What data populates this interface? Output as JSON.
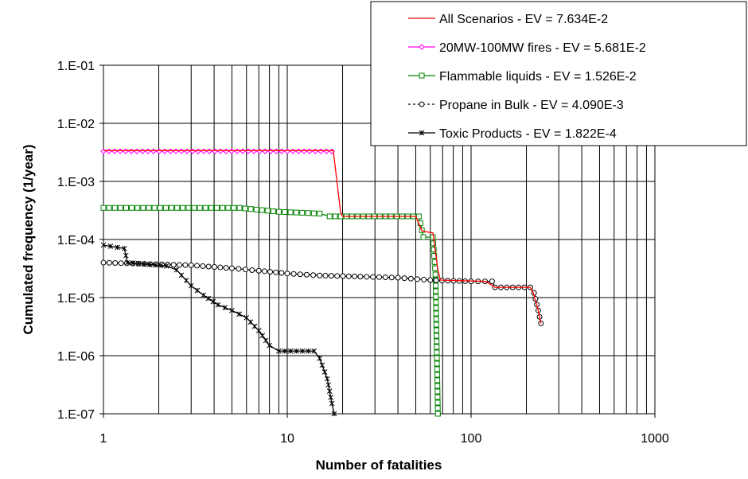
{
  "chart_data": {
    "type": "line",
    "title": "",
    "xlabel": "Number of fatalities",
    "ylabel": "Cumulated frequency (1/year)",
    "x_scale": "log",
    "y_scale": "log",
    "xlim": [
      1,
      1000
    ],
    "ylim": [
      1e-07,
      0.1
    ],
    "grid": true,
    "legend_position": "top-right",
    "x_ticks": [
      {
        "value": 1,
        "label": "1"
      },
      {
        "value": 10,
        "label": "10"
      },
      {
        "value": 100,
        "label": "100"
      },
      {
        "value": 1000,
        "label": "1000"
      }
    ],
    "y_ticks": [
      {
        "value": 0.1,
        "label": "1.E-01"
      },
      {
        "value": 0.01,
        "label": "1.E-02"
      },
      {
        "value": 0.001,
        "label": "1.E-03"
      },
      {
        "value": 0.0001,
        "label": "1.E-04"
      },
      {
        "value": 1e-05,
        "label": "1.E-05"
      },
      {
        "value": 1e-06,
        "label": "1.E-06"
      },
      {
        "value": 1e-07,
        "label": "1.E-07"
      }
    ],
    "series": [
      {
        "name": "All Scenarios - EV = 7.634E-2",
        "color": "#ff0000",
        "marker": "none",
        "points": [
          [
            1,
            0.0034
          ],
          [
            17.8,
            0.0034
          ],
          [
            19.5,
            0.0003
          ],
          [
            20,
            0.00025
          ],
          [
            50,
            0.00025
          ],
          [
            54,
            0.00014
          ],
          [
            62,
            0.00013
          ],
          [
            66,
            3e-05
          ],
          [
            68,
            2e-05
          ],
          [
            120,
            1.9e-05
          ],
          [
            135,
            1.5e-05
          ],
          [
            210,
            1.5e-05
          ],
          [
            218,
            1.2e-05
          ],
          [
            232,
            6e-06
          ],
          [
            240,
            3.6e-06
          ]
        ]
      },
      {
        "name": "20MW-100MW fires - EV = 5.681E-2",
        "color": "#ff00ff",
        "marker": "diamond",
        "points": [
          [
            1,
            0.0033
          ],
          [
            17.5,
            0.0033
          ]
        ]
      },
      {
        "name": "Flammable liquids - EV = 1.526E-2",
        "color": "#008000",
        "marker": "square",
        "points": [
          [
            1,
            0.00035
          ],
          [
            5.5,
            0.00035
          ],
          [
            9,
            0.0003
          ],
          [
            15,
            0.00028
          ],
          [
            17,
            0.00025
          ],
          [
            52,
            0.00025
          ],
          [
            55,
            0.00011
          ],
          [
            62,
            0.00011
          ],
          [
            64,
            2.5e-05
          ],
          [
            66,
            1e-07
          ]
        ]
      },
      {
        "name": "Propane in Bulk - EV = 4.090E-3",
        "color": "#000000",
        "marker": "circle",
        "points": [
          [
            1,
            4e-05
          ],
          [
            3,
            3.6e-05
          ],
          [
            5,
            3.2e-05
          ],
          [
            7,
            2.9e-05
          ],
          [
            10,
            2.6e-05
          ],
          [
            15,
            2.4e-05
          ],
          [
            25,
            2.3e-05
          ],
          [
            40,
            2.2e-05
          ],
          [
            60,
            2e-05
          ],
          [
            100,
            1.9e-05
          ],
          [
            130,
            1.9e-05
          ],
          [
            135,
            1.5e-05
          ],
          [
            210,
            1.5e-05
          ],
          [
            220,
            1.2e-05
          ],
          [
            232,
            6e-06
          ],
          [
            240,
            3.6e-06
          ]
        ]
      },
      {
        "name": "Toxic Products - EV = 1.822E-4",
        "color": "#000000",
        "marker": "star",
        "points": [
          [
            1,
            8e-05
          ],
          [
            1.3,
            7e-05
          ],
          [
            1.35,
            4e-05
          ],
          [
            2.2,
            3.5e-05
          ],
          [
            2.5,
            3e-05
          ],
          [
            3,
            1.6e-05
          ],
          [
            3.5,
            1.1e-05
          ],
          [
            4.2,
            7.5e-06
          ],
          [
            5,
            6e-06
          ],
          [
            6,
            4.5e-06
          ],
          [
            7,
            2.7e-06
          ],
          [
            8,
            1.5e-06
          ],
          [
            9,
            1.2e-06
          ],
          [
            14,
            1.2e-06
          ],
          [
            15,
            9e-07
          ],
          [
            16.5,
            4e-07
          ],
          [
            17.5,
            1.5e-07
          ],
          [
            18,
            1e-07
          ]
        ]
      }
    ]
  }
}
